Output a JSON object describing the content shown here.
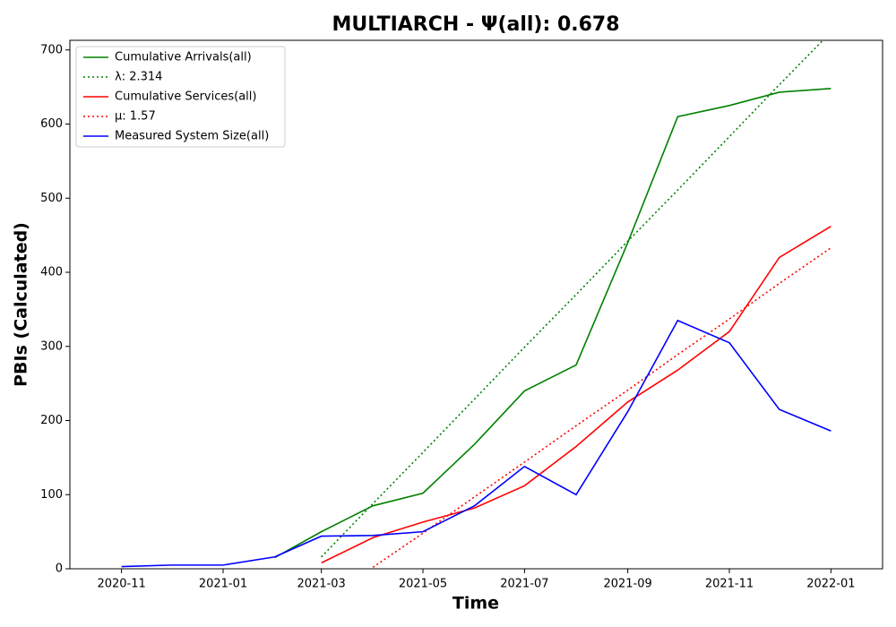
{
  "chart_data": {
    "type": "line",
    "title": "MULTIARCH -  Ψ(all): 0.678",
    "x_label": "Time",
    "y_label": "PBIs (Calculated)",
    "x": [
      "2020-11",
      "2020-12",
      "2021-01",
      "2021-02",
      "2021-03",
      "2021-04",
      "2021-05",
      "2021-06",
      "2021-07",
      "2021-08",
      "2021-09",
      "2021-10",
      "2021-11",
      "2021-12",
      "2022-01"
    ],
    "series": [
      {
        "name": "Cumulative Arrivals(all)",
        "color": "#008000",
        "dash": "solid",
        "values": [
          null,
          null,
          null,
          15,
          50,
          85,
          102,
          168,
          240,
          275,
          440,
          610,
          625,
          643,
          648
        ]
      },
      {
        "name": "λ: 2.314",
        "color": "#008000",
        "dash": "dotted",
        "values": [
          null,
          null,
          null,
          null,
          16,
          88,
          157,
          229,
          299,
          370,
          442,
          511,
          583,
          653,
          724
        ]
      },
      {
        "name": "Cumulative Services(all)",
        "color": "#ff0000",
        "dash": "solid",
        "values": [
          null,
          null,
          null,
          null,
          8,
          42,
          63,
          82,
          112,
          165,
          225,
          268,
          320,
          420,
          462
        ]
      },
      {
        "name": "μ: 1.57",
        "color": "#ff0000",
        "dash": "dotted",
        "values": [
          null,
          null,
          null,
          null,
          null,
          2,
          48,
          97,
          144,
          193,
          241,
          289,
          337,
          385,
          433
        ]
      },
      {
        "name": "Measured System Size(all)",
        "color": "#0000ff",
        "dash": "solid",
        "values": [
          3,
          5,
          5,
          16,
          44,
          45,
          50,
          85,
          138,
          100,
          212,
          335,
          305,
          215,
          186
        ]
      }
    ],
    "xlim": [
      "2020-10",
      "2022-02"
    ],
    "xticks": [
      "2020-11",
      "2021-01",
      "2021-03",
      "2021-05",
      "2021-07",
      "2021-09",
      "2021-11",
      "2022-01"
    ],
    "ylim": [
      0,
      713
    ],
    "yticks": [
      0,
      100,
      200,
      300,
      400,
      500,
      600,
      700
    ],
    "legend": "upper left"
  }
}
